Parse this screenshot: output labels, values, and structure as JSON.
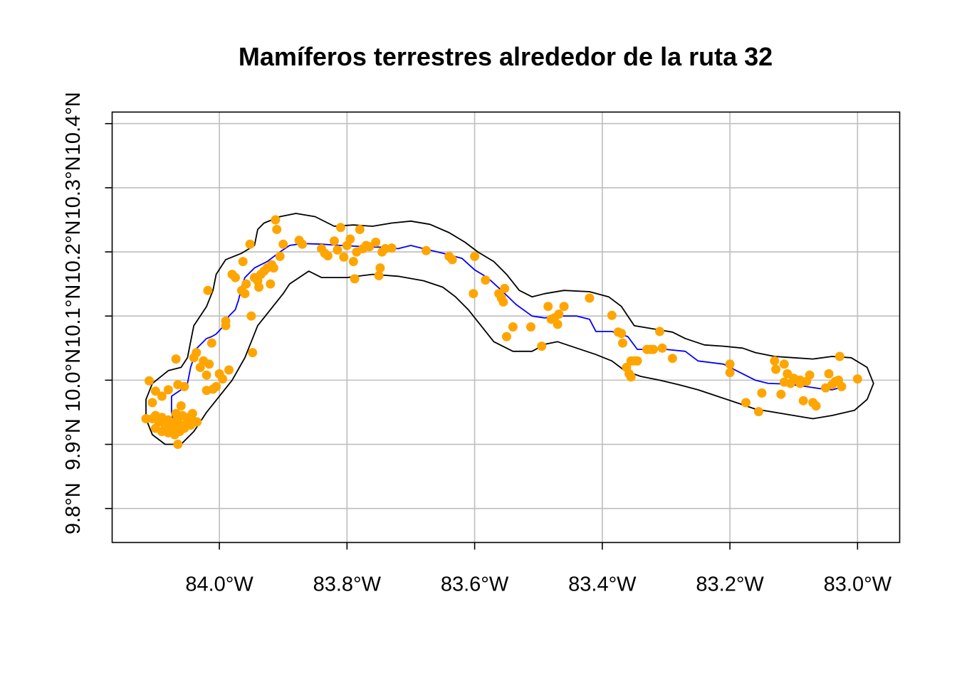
{
  "chart_data": {
    "type": "scatter",
    "title": "Mamíferos terrestres alrededor de la ruta 32",
    "xlabel": "",
    "ylabel": "",
    "xlim": [
      -84.168,
      -82.934
    ],
    "ylim": [
      9.747,
      10.418
    ],
    "grid": true,
    "x_ticks": [
      -84.0,
      -83.8,
      -83.6,
      -83.4,
      -83.2,
      -83.0
    ],
    "x_tick_labels": [
      "84.0°W",
      "83.8°W",
      "83.6°W",
      "83.4°W",
      "83.2°W",
      "83.0°W"
    ],
    "y_ticks": [
      9.8,
      9.9,
      10.0,
      10.1,
      10.2,
      10.3,
      10.4
    ],
    "y_tick_labels": [
      "9.8°N",
      "9.9°N",
      "10.0°N",
      "10.1°N",
      "10.2°N",
      "10.3°N",
      "10.4°N"
    ],
    "colors": {
      "points": "#FFA500",
      "route": "#0000FF",
      "buffer": "#000000",
      "grid": "#BEBEBE"
    },
    "route": [
      [
        -84.07,
        9.928
      ],
      [
        -84.075,
        9.95
      ],
      [
        -84.075,
        9.975
      ],
      [
        -84.06,
        9.985
      ],
      [
        -84.05,
        9.995
      ],
      [
        -84.045,
        10.02
      ],
      [
        -84.035,
        10.05
      ],
      [
        -84.02,
        10.065
      ],
      [
        -84.012,
        10.068
      ],
      [
        -84.005,
        10.072
      ],
      [
        -83.99,
        10.088
      ],
      [
        -83.985,
        10.1
      ],
      [
        -83.975,
        10.11
      ],
      [
        -83.97,
        10.125
      ],
      [
        -83.965,
        10.145
      ],
      [
        -83.96,
        10.16
      ],
      [
        -83.945,
        10.175
      ],
      [
        -83.925,
        10.185
      ],
      [
        -83.905,
        10.2
      ],
      [
        -83.89,
        10.21
      ],
      [
        -83.87,
        10.213
      ],
      [
        -83.84,
        10.212
      ],
      [
        -83.81,
        10.21
      ],
      [
        -83.77,
        10.208
      ],
      [
        -83.74,
        10.207
      ],
      [
        -83.72,
        10.205
      ],
      [
        -83.7,
        10.21
      ],
      [
        -83.68,
        10.205
      ],
      [
        -83.65,
        10.198
      ],
      [
        -83.62,
        10.19
      ],
      [
        -83.6,
        10.172
      ],
      [
        -83.58,
        10.16
      ],
      [
        -83.56,
        10.142
      ],
      [
        -83.535,
        10.118
      ],
      [
        -83.51,
        10.1
      ],
      [
        -83.49,
        10.097
      ],
      [
        -83.47,
        10.1
      ],
      [
        -83.44,
        10.1
      ],
      [
        -83.42,
        10.095
      ],
      [
        -83.41,
        10.076
      ],
      [
        -83.385,
        10.076
      ],
      [
        -83.36,
        10.068
      ],
      [
        -83.345,
        10.048
      ],
      [
        -83.325,
        10.048
      ],
      [
        -83.3,
        10.048
      ],
      [
        -83.27,
        10.045
      ],
      [
        -83.25,
        10.03
      ],
      [
        -83.21,
        10.025
      ],
      [
        -83.19,
        10.015
      ],
      [
        -83.16,
        10.0
      ],
      [
        -83.14,
        9.995
      ],
      [
        -83.11,
        9.994
      ],
      [
        -83.08,
        9.99
      ],
      [
        -83.06,
        9.987
      ],
      [
        -83.04,
        9.985
      ],
      [
        -83.02,
        9.99
      ]
    ],
    "buffer": [
      [
        -83.93,
        10.245
      ],
      [
        -83.905,
        10.255
      ],
      [
        -83.88,
        10.26
      ],
      [
        -83.85,
        10.255
      ],
      [
        -83.82,
        10.24
      ],
      [
        -83.79,
        10.242
      ],
      [
        -83.76,
        10.24
      ],
      [
        -83.73,
        10.245
      ],
      [
        -83.7,
        10.248
      ],
      [
        -83.67,
        10.243
      ],
      [
        -83.64,
        10.23
      ],
      [
        -83.615,
        10.215
      ],
      [
        -83.595,
        10.2
      ],
      [
        -83.57,
        10.185
      ],
      [
        -83.55,
        10.165
      ],
      [
        -83.53,
        10.14
      ],
      [
        -83.51,
        10.13
      ],
      [
        -83.49,
        10.135
      ],
      [
        -83.46,
        10.14
      ],
      [
        -83.42,
        10.138
      ],
      [
        -83.39,
        10.13
      ],
      [
        -83.37,
        10.115
      ],
      [
        -83.36,
        10.1
      ],
      [
        -83.35,
        10.085
      ],
      [
        -83.32,
        10.08
      ],
      [
        -83.29,
        10.075
      ],
      [
        -83.27,
        10.065
      ],
      [
        -83.24,
        10.055
      ],
      [
        -83.21,
        10.053
      ],
      [
        -83.18,
        10.05
      ],
      [
        -83.16,
        10.043
      ],
      [
        -83.13,
        10.037
      ],
      [
        -83.1,
        10.035
      ],
      [
        -83.07,
        10.033
      ],
      [
        -83.04,
        10.037
      ],
      [
        -83.01,
        10.035
      ],
      [
        -82.985,
        10.02
      ],
      [
        -82.975,
        9.995
      ],
      [
        -82.985,
        9.97
      ],
      [
        -83.005,
        9.953
      ],
      [
        -83.04,
        9.945
      ],
      [
        -83.07,
        9.94
      ],
      [
        -83.1,
        9.945
      ],
      [
        -83.13,
        9.95
      ],
      [
        -83.16,
        9.955
      ],
      [
        -83.19,
        9.965
      ],
      [
        -83.22,
        9.975
      ],
      [
        -83.25,
        9.985
      ],
      [
        -83.28,
        9.993
      ],
      [
        -83.31,
        10.0
      ],
      [
        -83.34,
        10.006
      ],
      [
        -83.365,
        10.015
      ],
      [
        -83.385,
        10.03
      ],
      [
        -83.41,
        10.04
      ],
      [
        -83.44,
        10.05
      ],
      [
        -83.47,
        10.06
      ],
      [
        -83.49,
        10.056
      ],
      [
        -83.51,
        10.045
      ],
      [
        -83.54,
        10.045
      ],
      [
        -83.57,
        10.06
      ],
      [
        -83.59,
        10.085
      ],
      [
        -83.61,
        10.11
      ],
      [
        -83.63,
        10.13
      ],
      [
        -83.65,
        10.145
      ],
      [
        -83.68,
        10.155
      ],
      [
        -83.72,
        10.162
      ],
      [
        -83.76,
        10.165
      ],
      [
        -83.8,
        10.16
      ],
      [
        -83.84,
        10.16
      ],
      [
        -83.86,
        10.17
      ],
      [
        -83.89,
        10.15
      ],
      [
        -83.9,
        10.135
      ],
      [
        -83.92,
        10.11
      ],
      [
        -83.94,
        10.085
      ],
      [
        -83.95,
        10.06
      ],
      [
        -83.96,
        10.035
      ],
      [
        -83.98,
        10.0
      ],
      [
        -84.0,
        9.975
      ],
      [
        -84.02,
        9.95
      ],
      [
        -84.04,
        9.92
      ],
      [
        -84.06,
        9.9
      ],
      [
        -84.085,
        9.9
      ],
      [
        -84.105,
        9.915
      ],
      [
        -84.115,
        9.94
      ],
      [
        -84.115,
        9.97
      ],
      [
        -84.105,
        9.995
      ],
      [
        -84.08,
        10.015
      ],
      [
        -84.06,
        10.02
      ],
      [
        -84.05,
        10.035
      ],
      [
        -84.045,
        10.06
      ],
      [
        -84.04,
        10.085
      ],
      [
        -84.03,
        10.1
      ],
      [
        -84.02,
        10.115
      ],
      [
        -84.01,
        10.14
      ],
      [
        -84.005,
        10.165
      ],
      [
        -83.99,
        10.188
      ],
      [
        -83.965,
        10.198
      ],
      [
        -83.945,
        10.21
      ],
      [
        -83.94,
        10.235
      ],
      [
        -83.93,
        10.245
      ]
    ],
    "points": [
      [
        -84.11,
        9.999
      ],
      [
        -84.105,
        9.965
      ],
      [
        -84.1,
        9.983
      ],
      [
        -84.09,
        9.975
      ],
      [
        -84.08,
        9.985
      ],
      [
        -84.1,
        9.945
      ],
      [
        -84.095,
        9.935
      ],
      [
        -84.09,
        9.942
      ],
      [
        -84.085,
        9.93
      ],
      [
        -84.08,
        9.938
      ],
      [
        -84.075,
        9.925
      ],
      [
        -84.07,
        9.935
      ],
      [
        -84.065,
        9.94
      ],
      [
        -84.06,
        9.93
      ],
      [
        -84.055,
        9.925
      ],
      [
        -84.05,
        9.935
      ],
      [
        -84.045,
        9.93
      ],
      [
        -84.04,
        9.936
      ],
      [
        -84.1,
        9.925
      ],
      [
        -84.09,
        9.92
      ],
      [
        -84.08,
        9.918
      ],
      [
        -84.07,
        9.915
      ],
      [
        -84.065,
        9.9
      ],
      [
        -84.06,
        9.96
      ],
      [
        -84.115,
        9.94
      ],
      [
        -84.105,
        9.94
      ],
      [
        -84.068,
        9.948
      ],
      [
        -84.058,
        9.945
      ],
      [
        -84.048,
        9.942
      ],
      [
        -84.072,
        9.928
      ],
      [
        -84.062,
        9.92
      ],
      [
        -84.052,
        9.93
      ],
      [
        -84.042,
        9.948
      ],
      [
        -84.035,
        9.935
      ],
      [
        -84.055,
        9.99
      ],
      [
        -84.065,
        9.993
      ],
      [
        -84.068,
        10.033
      ],
      [
        -84.04,
        10.035
      ],
      [
        -84.036,
        10.043
      ],
      [
        -84.03,
        10.02
      ],
      [
        -84.025,
        10.03
      ],
      [
        -84.02,
        10.008
      ],
      [
        -84.02,
        9.984
      ],
      [
        -84.016,
        10.025
      ],
      [
        -84.012,
        10.058
      ],
      [
        -84.01,
        9.986
      ],
      [
        -84.005,
        9.99
      ],
      [
        -84.0,
        10.01
      ],
      [
        -83.995,
        10.002
      ],
      [
        -83.99,
        10.092
      ],
      [
        -83.99,
        10.085
      ],
      [
        -83.985,
        10.016
      ],
      [
        -84.018,
        10.14
      ],
      [
        -83.98,
        10.165
      ],
      [
        -83.975,
        10.16
      ],
      [
        -83.965,
        10.14
      ],
      [
        -83.963,
        10.185
      ],
      [
        -83.96,
        10.135
      ],
      [
        -83.958,
        10.15
      ],
      [
        -83.952,
        10.212
      ],
      [
        -83.95,
        10.1
      ],
      [
        -83.948,
        10.043
      ],
      [
        -83.945,
        10.16
      ],
      [
        -83.94,
        10.155
      ],
      [
        -83.938,
        10.145
      ],
      [
        -83.935,
        10.165
      ],
      [
        -83.93,
        10.17
      ],
      [
        -83.925,
        10.175
      ],
      [
        -83.92,
        10.15
      ],
      [
        -83.918,
        10.18
      ],
      [
        -83.915,
        10.175
      ],
      [
        -83.912,
        10.25
      ],
      [
        -83.91,
        10.235
      ],
      [
        -83.905,
        10.193
      ],
      [
        -83.9,
        10.212
      ],
      [
        -83.875,
        10.218
      ],
      [
        -83.87,
        10.212
      ],
      [
        -83.84,
        10.205
      ],
      [
        -83.835,
        10.198
      ],
      [
        -83.83,
        10.194
      ],
      [
        -83.82,
        10.217
      ],
      [
        -83.815,
        10.203
      ],
      [
        -83.81,
        10.238
      ],
      [
        -83.805,
        10.192
      ],
      [
        -83.8,
        10.21
      ],
      [
        -83.795,
        10.22
      ],
      [
        -83.79,
        10.185
      ],
      [
        -83.788,
        10.158
      ],
      [
        -83.785,
        10.2
      ],
      [
        -83.78,
        10.235
      ],
      [
        -83.775,
        10.205
      ],
      [
        -83.77,
        10.21
      ],
      [
        -83.765,
        10.208
      ],
      [
        -83.755,
        10.215
      ],
      [
        -83.75,
        10.163
      ],
      [
        -83.748,
        10.175
      ],
      [
        -83.745,
        10.2
      ],
      [
        -83.74,
        10.205
      ],
      [
        -83.73,
        10.206
      ],
      [
        -83.676,
        10.202
      ],
      [
        -83.64,
        10.193
      ],
      [
        -83.635,
        10.188
      ],
      [
        -83.6,
        10.193
      ],
      [
        -83.602,
        10.135
      ],
      [
        -83.583,
        10.156
      ],
      [
        -83.562,
        10.135
      ],
      [
        -83.558,
        10.128
      ],
      [
        -83.555,
        10.122
      ],
      [
        -83.553,
        10.143
      ],
      [
        -83.54,
        10.083
      ],
      [
        -83.55,
        10.068
      ],
      [
        -83.512,
        10.083
      ],
      [
        -83.485,
        10.115
      ],
      [
        -83.48,
        10.095
      ],
      [
        -83.475,
        10.097
      ],
      [
        -83.47,
        10.087
      ],
      [
        -83.468,
        10.103
      ],
      [
        -83.46,
        10.115
      ],
      [
        -83.42,
        10.128
      ],
      [
        -83.495,
        10.053
      ],
      [
        -83.385,
        10.101
      ],
      [
        -83.375,
        10.075
      ],
      [
        -83.37,
        10.073
      ],
      [
        -83.368,
        10.058
      ],
      [
        -83.362,
        10.02
      ],
      [
        -83.358,
        10.01
      ],
      [
        -83.355,
        10.03
      ],
      [
        -83.35,
        10.03
      ],
      [
        -83.345,
        10.03
      ],
      [
        -83.355,
        10.005
      ],
      [
        -83.33,
        10.048
      ],
      [
        -83.325,
        10.048
      ],
      [
        -83.32,
        10.048
      ],
      [
        -83.31,
        10.076
      ],
      [
        -83.306,
        10.05
      ],
      [
        -83.29,
        10.034
      ],
      [
        -83.2,
        10.025
      ],
      [
        -83.2,
        10.012
      ],
      [
        -83.175,
        9.965
      ],
      [
        -83.155,
        9.951
      ],
      [
        -83.15,
        9.98
      ],
      [
        -83.13,
        10.03
      ],
      [
        -83.128,
        10.017
      ],
      [
        -83.12,
        9.978
      ],
      [
        -83.115,
        10.025
      ],
      [
        -83.11,
        10.01
      ],
      [
        -83.105,
        9.995
      ],
      [
        -83.1,
        10.003
      ],
      [
        -83.095,
        10.0
      ],
      [
        -83.09,
        10.0
      ],
      [
        -83.085,
        9.968
      ],
      [
        -83.08,
        9.998
      ],
      [
        -83.075,
        10.008
      ],
      [
        -83.07,
        9.965
      ],
      [
        -83.065,
        9.96
      ],
      [
        -83.05,
        9.988
      ],
      [
        -83.045,
        10.01
      ],
      [
        -83.04,
        9.993
      ],
      [
        -83.035,
        9.998
      ],
      [
        -83.03,
        10.0
      ],
      [
        -83.025,
        9.99
      ],
      [
        -83.028,
        10.037
      ],
      [
        -83.0,
        10.002
      ],
      [
        -83.115,
        9.997
      ],
      [
        -83.09,
        9.995
      ]
    ]
  }
}
